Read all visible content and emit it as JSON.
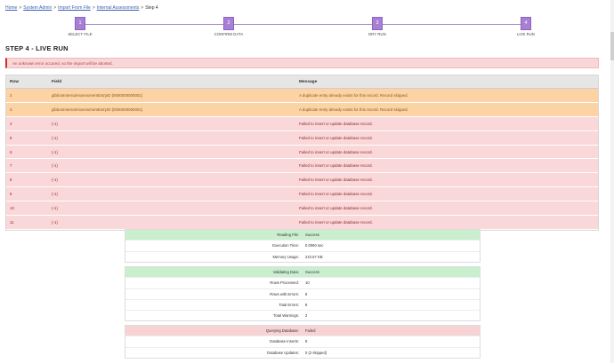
{
  "breadcrumb": {
    "items": [
      "Home",
      "System Admin",
      "Import From File",
      "Internal Assessments"
    ],
    "current": "Step 4"
  },
  "steps": [
    {
      "num": "1",
      "label": "SELECT FILE"
    },
    {
      "num": "2",
      "label": "CONFIRM DATA"
    },
    {
      "num": "3",
      "label": "DRY RUN"
    },
    {
      "num": "4",
      "label": "LIVE RUN"
    }
  ],
  "title": "STEP 4 - LIVE RUN",
  "alert": "An unknown error occured, so the import will be aborted.",
  "grid": {
    "headers": {
      "row": "Row",
      "field": "Field",
      "message": "Message"
    },
    "rows": [
      {
        "row": "2",
        "field": "gibbonInternalAssessmentEntryID (0000000000001)",
        "message": "A duplicate entry already exists for this record. Record skipped.",
        "status": "warn"
      },
      {
        "row": "3",
        "field": "gibbonInternalAssessmentEntryID (0000000000001)",
        "message": "A duplicate entry already exists for this record. Record skipped.",
        "status": "warn"
      },
      {
        "row": "4",
        "field": "(-1)",
        "message": "Failed to insert or update database record.",
        "status": "err"
      },
      {
        "row": "5",
        "field": "(-1)",
        "message": "Failed to insert or update database record.",
        "status": "err"
      },
      {
        "row": "6",
        "field": "(-1)",
        "message": "Failed to insert or update database record.",
        "status": "err"
      },
      {
        "row": "7",
        "field": "(-1)",
        "message": "Failed to insert or update database record.",
        "status": "err"
      },
      {
        "row": "8",
        "field": "(-1)",
        "message": "Failed to insert or update database record.",
        "status": "err"
      },
      {
        "row": "9",
        "field": "(-1)",
        "message": "Failed to insert or update database record.",
        "status": "err"
      },
      {
        "row": "10",
        "field": "(-1)",
        "message": "Failed to insert or update database record.",
        "status": "err"
      },
      {
        "row": "11",
        "field": "(-1)",
        "message": "Failed to insert or update database record.",
        "status": "err"
      }
    ]
  },
  "summary_reading": [
    {
      "label": "Reading File:",
      "value": "Success",
      "status": "ok"
    },
    {
      "label": "Execution Time:",
      "value": "0.0060 sec",
      "status": ""
    },
    {
      "label": "Memory Usage:",
      "value": "210.57 KB",
      "status": ""
    }
  ],
  "summary_validating": [
    {
      "label": "Validating Data:",
      "value": "Success",
      "status": "ok"
    },
    {
      "label": "Rows Processed:",
      "value": "10",
      "status": ""
    },
    {
      "label": "Rows with Errors:",
      "value": "8",
      "status": ""
    },
    {
      "label": "Total Errors:",
      "value": "8",
      "status": ""
    },
    {
      "label": "Total Warnings:",
      "value": "2",
      "status": ""
    }
  ],
  "summary_querying": [
    {
      "label": "Querying Database:",
      "value": "Failed",
      "status": "bad"
    },
    {
      "label": "Database Inserts:",
      "value": "8",
      "status": ""
    },
    {
      "label": "Database Updates:",
      "value": "0 (2 skipped)",
      "status": ""
    }
  ]
}
